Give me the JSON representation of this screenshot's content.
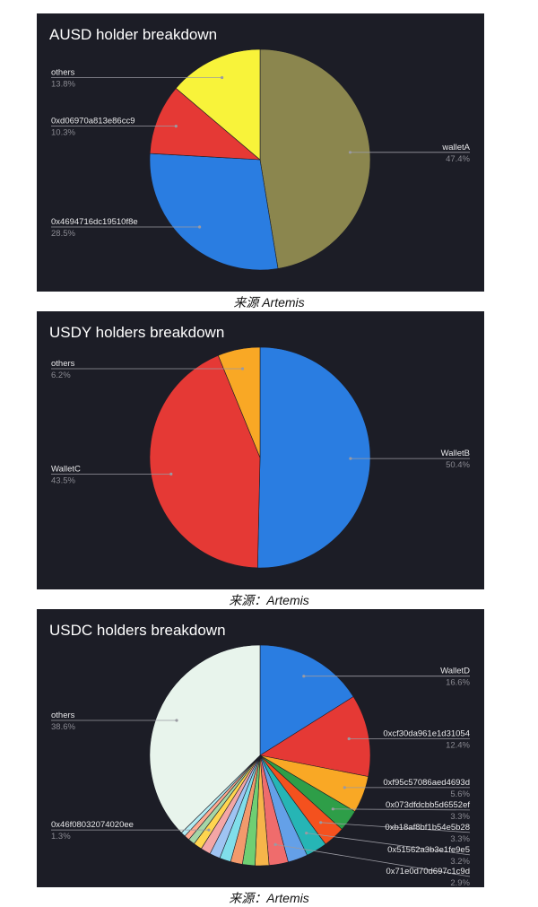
{
  "chart_data": [
    {
      "type": "pie",
      "title": "AUSD holder breakdown",
      "caption": "来源 Artemis",
      "slices": [
        {
          "label": "walletA",
          "percent": "47.4%",
          "value": 47.4,
          "color": "#8b864e"
        },
        {
          "label": "0x4694716dc19510f8e",
          "percent": "28.5%",
          "value": 28.5,
          "color": "#2a7de1"
        },
        {
          "label": "0xd06970a813e86cc9",
          "percent": "10.3%",
          "value": 10.3,
          "color": "#e53935"
        },
        {
          "label": "others",
          "percent": "13.8%",
          "value": 13.8,
          "color": "#f8f33a"
        }
      ]
    },
    {
      "type": "pie",
      "title": "USDY holders breakdown",
      "caption": "来源：Artemis",
      "slices": [
        {
          "label": "WalletB",
          "percent": "50.4%",
          "value": 50.4,
          "color": "#2a7de1"
        },
        {
          "label": "WalletC",
          "percent": "43.5%",
          "value": 43.5,
          "color": "#e53935"
        },
        {
          "label": "others",
          "percent": "6.2%",
          "value": 6.2,
          "color": "#f9a825"
        }
      ]
    },
    {
      "type": "pie",
      "title": "USDC holders breakdown",
      "caption": "来源：Artemis",
      "slices": [
        {
          "label": "WalletD",
          "percent": "16.6%",
          "value": 16.6,
          "color": "#2a7de1"
        },
        {
          "label": "0xcf30da961e1d31054",
          "percent": "12.4%",
          "value": 12.4,
          "color": "#e53935"
        },
        {
          "label": "0xf95c57086aed4693d",
          "percent": "5.6%",
          "value": 5.6,
          "color": "#f9a825"
        },
        {
          "label": "0x073dfdcbb5d6552ef",
          "percent": "3.3%",
          "value": 3.3,
          "color": "#2e9e48"
        },
        {
          "label": "0xb18af8bf1b54e5b28",
          "percent": "3.3%",
          "value": 3.3,
          "color": "#f4511e"
        },
        {
          "label": "0x51562a3b3e1fe9e5",
          "percent": "3.2%",
          "value": 3.2,
          "color": "#26b5b5"
        },
        {
          "label": "",
          "percent": "",
          "value": 3.0,
          "color": "#64a0e8"
        },
        {
          "label": "0x71e0d70d697c1c9d",
          "percent": "2.9%",
          "value": 2.9,
          "color": "#ef6c6c"
        },
        {
          "label": "",
          "percent": "",
          "value": 2.1,
          "color": "#f6b54a"
        },
        {
          "label": "",
          "percent": "",
          "value": 1.9,
          "color": "#6fcf73"
        },
        {
          "label": "",
          "percent": "",
          "value": 1.8,
          "color": "#f29a6c"
        },
        {
          "label": "",
          "percent": "",
          "value": 1.7,
          "color": "#80deea"
        },
        {
          "label": "",
          "percent": "",
          "value": 1.6,
          "color": "#9fc4f2"
        },
        {
          "label": "",
          "percent": "",
          "value": 1.5,
          "color": "#f4a6a6"
        },
        {
          "label": "0x46f08032074020ee",
          "percent": "1.3%",
          "value": 1.3,
          "color": "#ffd54f"
        },
        {
          "label": "",
          "percent": "",
          "value": 1.0,
          "color": "#a5d6a7"
        },
        {
          "label": "",
          "percent": "",
          "value": 0.8,
          "color": "#ffab91"
        },
        {
          "label": "",
          "percent": "",
          "value": 0.7,
          "color": "#b2ebf2"
        },
        {
          "label": "others",
          "percent": "38.6%",
          "value": 38.6,
          "color": "#e8f4ec"
        }
      ]
    }
  ]
}
